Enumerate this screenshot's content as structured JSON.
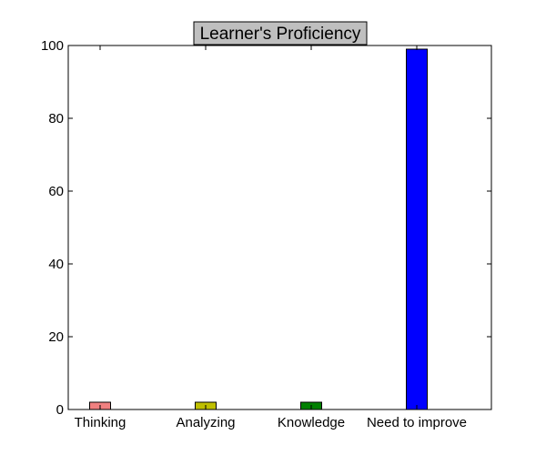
{
  "chart_data": {
    "type": "bar",
    "title": "Learner's Proficiency",
    "xlabel": "",
    "ylabel": "",
    "categories": [
      "Thinking",
      "Analyzing",
      "Knowledge",
      "Need to improve"
    ],
    "values": [
      2,
      2,
      2,
      99
    ],
    "colors": [
      "#f08080",
      "#bfbf00",
      "#008000",
      "#0000ff"
    ],
    "ylim": [
      0,
      100
    ],
    "yticks": [
      0,
      20,
      40,
      60,
      80,
      100
    ],
    "grid": false,
    "legend": "none",
    "title_box_color": "#bfbfbf"
  }
}
